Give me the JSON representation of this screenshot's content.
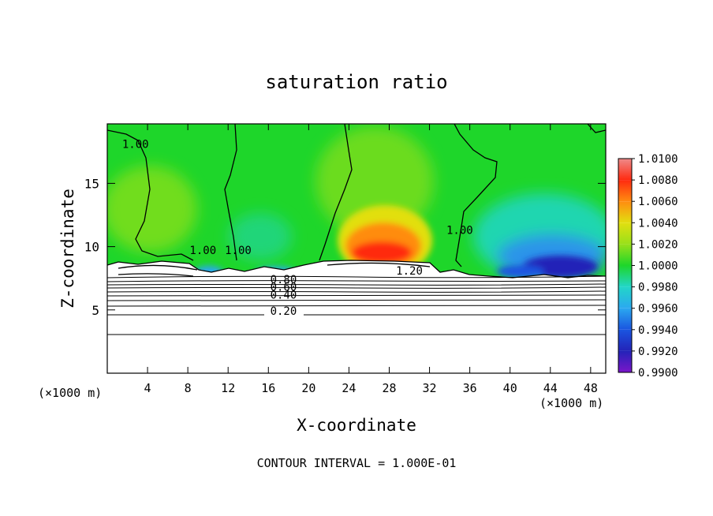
{
  "chart_data": {
    "type": "heatmap",
    "title": "saturation ratio",
    "xlabel": "X-coordinate",
    "ylabel": "Z-coordinate",
    "x_unit_label": "(×1000 m)",
    "y_unit_label": "(×1000 m)",
    "xlim": [
      0,
      49.5
    ],
    "ylim": [
      0,
      19.7
    ],
    "x_ticks": [
      4,
      8,
      12,
      16,
      20,
      24,
      28,
      32,
      36,
      40,
      44,
      48
    ],
    "y_ticks": [
      5,
      10,
      15
    ],
    "footer": "CONTOUR INTERVAL = 1.000E-01",
    "colorbar": {
      "levels": [
        "0.9900",
        "0.9920",
        "0.9940",
        "0.9960",
        "0.9980",
        "1.0000",
        "1.0020",
        "1.0040",
        "1.0060",
        "1.0080",
        "1.0100"
      ],
      "colors": [
        "#7a16c9",
        "#2323b8",
        "#1a55e0",
        "#2ba8f0",
        "#22d6c8",
        "#1ed62a",
        "#99e01a",
        "#e2df10",
        "#ff8c10",
        "#ff2a10",
        "#ee8a8a"
      ]
    },
    "field_regions": [
      {
        "x": [
          24,
          31
        ],
        "z": [
          8.8,
          13
        ],
        "value": 1.006
      },
      {
        "x": [
          37,
          48
        ],
        "z": [
          7.8,
          10.5
        ],
        "value": 0.993
      },
      {
        "x": [
          3,
          10
        ],
        "z": [
          10,
          16
        ],
        "value": 1.002
      },
      {
        "x": [
          21,
          33
        ],
        "z": [
          11,
          18
        ],
        "value": 1.002
      }
    ],
    "contour_labels": [
      {
        "text": "1.00",
        "x": 2.8,
        "z": 17.8
      },
      {
        "text": "1.00",
        "x": 9.5,
        "z": 9.4
      },
      {
        "text": "1.00",
        "x": 13.0,
        "z": 9.4
      },
      {
        "text": "1.00",
        "x": 35.0,
        "z": 11.0
      },
      {
        "text": "1.20",
        "x": 30.0,
        "z": 7.8
      },
      {
        "text": "0.80",
        "x": 17.5,
        "z": 7.1
      },
      {
        "text": "0.60",
        "x": 17.5,
        "z": 6.5
      },
      {
        "text": "0.40",
        "x": 17.5,
        "z": 5.9
      },
      {
        "text": "0.20",
        "x": 17.5,
        "z": 4.6
      }
    ]
  }
}
